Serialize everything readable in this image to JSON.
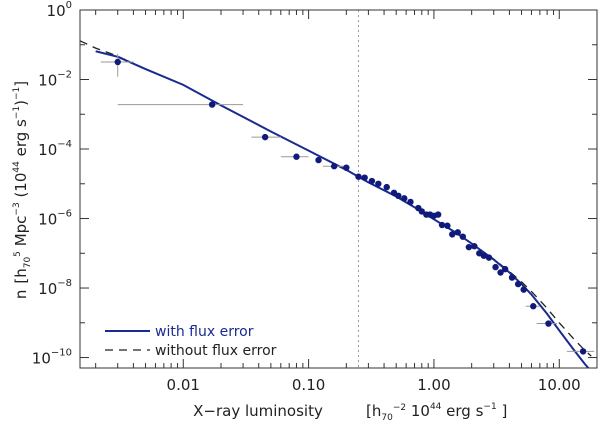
{
  "chart_data": {
    "type": "scatter",
    "xlabel_main": "X−ray luminosity",
    "xlabel_unit_open": "[h",
    "xlabel_unit_sub": "70",
    "xlabel_unit_sup": "−2",
    "xlabel_unit_rest": " 10",
    "xlabel_unit_sup2": "44",
    "xlabel_unit_end": " erg s",
    "xlabel_unit_sup3": "−1",
    "xlabel_unit_close": " ]",
    "ylabel_parts": {
      "n": "n",
      "open": "[h",
      "h_sub": "70",
      "h_sup": "5",
      "mpc": " Mpc",
      "mpc_sup": "−3",
      "paren_open": " (10",
      "ten_sup": "44",
      "erg": " erg s",
      "s_sup": "−1",
      "close": ")",
      "close_sup": "−1",
      "end": "]"
    },
    "xscale": "log",
    "yscale": "log",
    "xlim": [
      0.0015,
      20
    ],
    "ylim": [
      5e-11,
      1
    ],
    "xticks": [
      {
        "value": 0.01,
        "label": "0.01"
      },
      {
        "value": 0.1,
        "label": "0.10"
      },
      {
        "value": 1,
        "label": "1.00"
      },
      {
        "value": 10,
        "label": "10.00"
      }
    ],
    "yticks": [
      {
        "exp": 0,
        "base": "10",
        "sup": "0"
      },
      {
        "exp": -2,
        "base": "10",
        "sup": "−2"
      },
      {
        "exp": -4,
        "base": "10",
        "sup": "−4"
      },
      {
        "exp": -6,
        "base": "10",
        "sup": "−6"
      },
      {
        "exp": -8,
        "base": "10",
        "sup": "−8"
      },
      {
        "exp": -10,
        "base": "10",
        "sup": "−10"
      }
    ],
    "vline_x": 0.25,
    "points": [
      {
        "x": 0.003,
        "y": 0.032,
        "xerr": [
          0.0022,
          0.004
        ],
        "yerr": [
          0.012,
          0.055
        ]
      },
      {
        "x": 0.017,
        "y": 0.0019,
        "xerr": [
          0.003,
          0.03
        ]
      },
      {
        "x": 0.045,
        "y": 0.00022,
        "xerr": [
          0.035,
          0.06
        ]
      },
      {
        "x": 0.08,
        "y": 6e-05,
        "xerr": [
          0.06,
          0.1
        ]
      },
      {
        "x": 0.12,
        "y": 4.8e-05
      },
      {
        "x": 0.16,
        "y": 3.2e-05,
        "xerr": [
          0.13,
          0.2
        ]
      },
      {
        "x": 0.2,
        "y": 2.9e-05
      },
      {
        "x": 0.25,
        "y": 1.6e-05
      },
      {
        "x": 0.28,
        "y": 1.5e-05
      },
      {
        "x": 0.32,
        "y": 1.2e-05
      },
      {
        "x": 0.36,
        "y": 1e-05
      },
      {
        "x": 0.42,
        "y": 8e-06
      },
      {
        "x": 0.48,
        "y": 5.5e-06
      },
      {
        "x": 0.52,
        "y": 4.5e-06
      },
      {
        "x": 0.58,
        "y": 3.8e-06
      },
      {
        "x": 0.65,
        "y": 3e-06
      },
      {
        "x": 0.75,
        "y": 2e-06
      },
      {
        "x": 0.8,
        "y": 1.6e-06
      },
      {
        "x": 0.87,
        "y": 1.3e-06
      },
      {
        "x": 0.93,
        "y": 1.3e-06
      },
      {
        "x": 1.0,
        "y": 1.2e-06
      },
      {
        "x": 1.08,
        "y": 1.3e-06
      },
      {
        "x": 1.16,
        "y": 6.5e-07
      },
      {
        "x": 1.28,
        "y": 6.2e-07
      },
      {
        "x": 1.4,
        "y": 3.5e-07
      },
      {
        "x": 1.55,
        "y": 4e-07
      },
      {
        "x": 1.7,
        "y": 3e-07
      },
      {
        "x": 1.9,
        "y": 1.5e-07
      },
      {
        "x": 2.1,
        "y": 1.6e-07
      },
      {
        "x": 2.3,
        "y": 1e-07
      },
      {
        "x": 2.5,
        "y": 8.5e-08
      },
      {
        "x": 2.75,
        "y": 7.5e-08
      },
      {
        "x": 3.1,
        "y": 4e-08
      },
      {
        "x": 3.4,
        "y": 2.8e-08
      },
      {
        "x": 3.7,
        "y": 3.5e-08
      },
      {
        "x": 4.2,
        "y": 2e-08
      },
      {
        "x": 4.7,
        "y": 1.3e-08
      },
      {
        "x": 5.2,
        "y": 9e-09
      },
      {
        "x": 6.2,
        "y": 3e-09,
        "xerr": [
          5.4,
          7.0
        ]
      },
      {
        "x": 8.2,
        "y": 9.5e-10,
        "xerr": [
          6.6,
          9.6
        ]
      },
      {
        "x": 15.5,
        "y": 1.5e-10,
        "xerr": [
          11.5,
          19.0
        ]
      }
    ],
    "curve_solid": [
      [
        0.002,
        0.065
      ],
      [
        0.003,
        0.045
      ],
      [
        0.005,
        0.02
      ],
      [
        0.01,
        0.007
      ],
      [
        0.02,
        0.0018
      ],
      [
        0.05,
        0.00032
      ],
      [
        0.1,
        9e-05
      ],
      [
        0.2,
        2.5e-05
      ],
      [
        0.3,
        1.1e-05
      ],
      [
        0.5,
        4.3e-06
      ],
      [
        0.7,
        2.1e-06
      ],
      [
        1.0,
        9.5e-07
      ],
      [
        1.5,
        3.9e-07
      ],
      [
        2.0,
        1.9e-07
      ],
      [
        3.0,
        6.6e-08
      ],
      [
        4.0,
        2.8e-08
      ],
      [
        5.0,
        1.3e-08
      ],
      [
        6.0,
        6.5e-09
      ],
      [
        8.0,
        1.8e-09
      ],
      [
        10.0,
        6e-10
      ],
      [
        13.0,
        1.7e-10
      ],
      [
        16.0,
        6.5e-11
      ],
      [
        18.0,
        4e-11
      ]
    ],
    "curve_dashed": [
      [
        0.0015,
        0.13
      ],
      [
        0.002,
        0.08
      ],
      [
        0.003,
        0.047
      ],
      [
        0.005,
        0.02
      ],
      [
        0.01,
        0.007
      ],
      [
        0.02,
        0.0018
      ],
      [
        0.05,
        0.00032
      ],
      [
        0.1,
        9e-05
      ],
      [
        0.2,
        2.5e-05
      ],
      [
        0.3,
        1.1e-05
      ],
      [
        0.5,
        4.3e-06
      ],
      [
        0.7,
        2.1e-06
      ],
      [
        1.0,
        9.5e-07
      ],
      [
        1.5,
        3.9e-07
      ],
      [
        2.0,
        1.9e-07
      ],
      [
        3.0,
        6.8e-08
      ],
      [
        4.0,
        3e-08
      ],
      [
        5.0,
        1.5e-08
      ],
      [
        6.0,
        8e-09
      ],
      [
        8.0,
        2.6e-09
      ],
      [
        10.0,
        1e-09
      ],
      [
        13.0,
        3.5e-10
      ],
      [
        16.0,
        1.6e-10
      ],
      [
        18.0,
        1.1e-10
      ]
    ],
    "legend": [
      {
        "style": "solid",
        "label": "with flux error"
      },
      {
        "style": "dashed",
        "label": "without flux error"
      }
    ],
    "legend_placement": "bottom-left",
    "colors": {
      "points": "#101a7a",
      "solid_curve": "#1a2b8f",
      "dashed_curve": "#222222",
      "errorbars": "#9a9a9a",
      "vline": "#9a9a9a",
      "axes": "#333333"
    }
  }
}
